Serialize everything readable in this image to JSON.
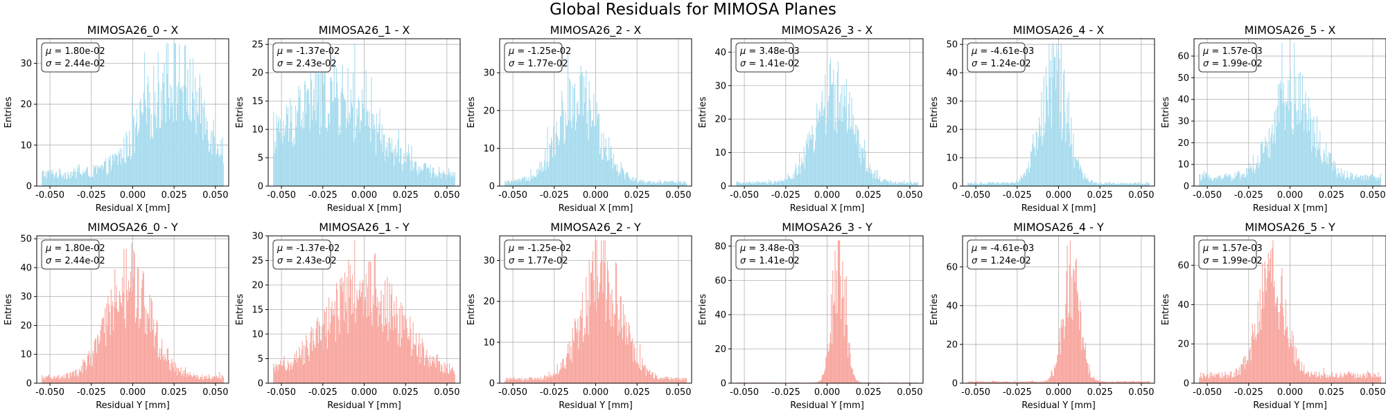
{
  "figure": {
    "title": "Global Residuals for MIMOSA Planes"
  },
  "colors": {
    "x_hist": "#a8dcee",
    "y_hist": "#f8a8a0",
    "grid": "#b0b0b0",
    "axes": "#000000"
  },
  "chart_data": [
    {
      "type": "bar",
      "title": "MIMOSA26_0 - X",
      "xlabel": "Residual X [mm]",
      "ylabel": "Entries",
      "xlim": [
        -0.058,
        0.058
      ],
      "ylim": [
        0,
        36
      ],
      "xticks": [
        -0.05,
        -0.025,
        0.0,
        0.025,
        0.05
      ],
      "xtick_labels": [
        "-0.050",
        "-0.025",
        "0.000",
        "0.025",
        "0.050"
      ],
      "yticks": [
        0,
        10,
        20,
        30
      ],
      "grid": true,
      "bins": [
        -0.055,
        0.055,
        240
      ],
      "shape": {
        "mean": 0.025,
        "sigma": 0.018,
        "peak": 23,
        "floor": 3
      },
      "annotation": {
        "mu": "1.80e-02",
        "sigma": "2.44e-02"
      },
      "color": "#a8dcee"
    },
    {
      "type": "bar",
      "title": "MIMOSA26_1 - X",
      "xlabel": "Residual X [mm]",
      "ylabel": "Entries",
      "xlim": [
        -0.058,
        0.058
      ],
      "ylim": [
        0,
        26
      ],
      "xticks": [
        -0.05,
        -0.025,
        0.0,
        0.025,
        0.05
      ],
      "xtick_labels": [
        "-0.050",
        "-0.025",
        "0.000",
        "0.025",
        "0.050"
      ],
      "yticks": [
        0,
        5,
        10,
        15,
        20,
        25
      ],
      "grid": true,
      "bins": [
        -0.055,
        0.055,
        240
      ],
      "shape": {
        "mean": -0.022,
        "sigma": 0.025,
        "peak": 14,
        "floor": 2
      },
      "annotation": {
        "mu": "-1.37e-02",
        "sigma": "2.43e-02"
      },
      "color": "#a8dcee"
    },
    {
      "type": "bar",
      "title": "MIMOSA26_2 - X",
      "xlabel": "Residual X [mm]",
      "ylabel": "Entries",
      "xlim": [
        -0.058,
        0.058
      ],
      "ylim": [
        0,
        39
      ],
      "xticks": [
        -0.05,
        -0.025,
        0.0,
        0.025,
        0.05
      ],
      "xtick_labels": [
        "-0.050",
        "-0.025",
        "0.000",
        "0.025",
        "0.050"
      ],
      "yticks": [
        0,
        10,
        20,
        30
      ],
      "grid": true,
      "bins": [
        -0.055,
        0.055,
        240
      ],
      "shape": {
        "mean": -0.01,
        "sigma": 0.013,
        "peak": 21,
        "floor": 1
      },
      "annotation": {
        "mu": "-1.25e-02",
        "sigma": "1.77e-02"
      },
      "color": "#a8dcee"
    },
    {
      "type": "bar",
      "title": "MIMOSA26_3 - X",
      "xlabel": "Residual X [mm]",
      "ylabel": "Entries",
      "xlim": [
        -0.058,
        0.058
      ],
      "ylim": [
        0,
        44
      ],
      "xticks": [
        -0.05,
        -0.025,
        0.0,
        0.025,
        0.05
      ],
      "xtick_labels": [
        "-0.050",
        "-0.025",
        "0.000",
        "0.025",
        "0.050"
      ],
      "yticks": [
        0,
        10,
        20,
        30,
        40
      ],
      "grid": true,
      "bins": [
        -0.055,
        0.055,
        240
      ],
      "shape": {
        "mean": 0.004,
        "sigma": 0.011,
        "peak": 27,
        "floor": 1
      },
      "annotation": {
        "mu": "3.48e-03",
        "sigma": "1.41e-02"
      },
      "color": "#a8dcee"
    },
    {
      "type": "bar",
      "title": "MIMOSA26_4 - X",
      "xlabel": "Residual X [mm]",
      "ylabel": "Entries",
      "xlim": [
        -0.058,
        0.058
      ],
      "ylim": [
        0,
        52
      ],
      "xticks": [
        -0.05,
        -0.025,
        0.0,
        0.025,
        0.05
      ],
      "xtick_labels": [
        "-0.050",
        "-0.025",
        "0.000",
        "0.025",
        "0.050"
      ],
      "yticks": [
        0,
        10,
        20,
        30,
        40,
        50
      ],
      "grid": true,
      "bins": [
        -0.055,
        0.055,
        240
      ],
      "shape": {
        "mean": -0.003,
        "sigma": 0.008,
        "peak": 35,
        "floor": 1
      },
      "annotation": {
        "mu": "-4.61e-03",
        "sigma": "1.24e-02"
      },
      "color": "#a8dcee"
    },
    {
      "type": "bar",
      "title": "MIMOSA26_5 - X",
      "xlabel": "Residual X [mm]",
      "ylabel": "Entries",
      "xlim": [
        -0.058,
        0.058
      ],
      "ylim": [
        0,
        68
      ],
      "xticks": [
        -0.05,
        -0.025,
        0.0,
        0.025,
        0.05
      ],
      "xtick_labels": [
        "-0.050",
        "-0.025",
        "0.000",
        "0.025",
        "0.050"
      ],
      "yticks": [
        0,
        10,
        20,
        30,
        40,
        50,
        60
      ],
      "grid": true,
      "bins": [
        -0.055,
        0.055,
        240
      ],
      "shape": {
        "mean": 0.002,
        "sigma": 0.012,
        "peak": 38,
        "floor": 4
      },
      "annotation": {
        "mu": "1.57e-03",
        "sigma": "1.99e-02"
      },
      "color": "#a8dcee"
    },
    {
      "type": "bar",
      "title": "MIMOSA26_0 - Y",
      "xlabel": "Residual Y [mm]",
      "ylabel": "Entries",
      "xlim": [
        -0.058,
        0.058
      ],
      "ylim": [
        0,
        51
      ],
      "xticks": [
        -0.05,
        -0.025,
        0.0,
        0.025,
        0.05
      ],
      "xtick_labels": [
        "-0.050",
        "-0.025",
        "0.000",
        "0.025",
        "0.050"
      ],
      "yticks": [
        0,
        10,
        20,
        30,
        40,
        50
      ],
      "grid": true,
      "bins": [
        -0.055,
        0.055,
        240
      ],
      "shape": {
        "mean": -0.002,
        "sigma": 0.013,
        "peak": 32,
        "floor": 2
      },
      "annotation": {
        "mu": "1.80e-02",
        "sigma": "2.44e-02"
      },
      "color": "#f8a8a0"
    },
    {
      "type": "bar",
      "title": "MIMOSA26_1 - Y",
      "xlabel": "Residual Y [mm]",
      "ylabel": "Entries",
      "xlim": [
        -0.058,
        0.058
      ],
      "ylim": [
        0,
        30
      ],
      "xticks": [
        -0.05,
        -0.025,
        0.0,
        0.025,
        0.05
      ],
      "xtick_labels": [
        "-0.050",
        "-0.025",
        "0.000",
        "0.025",
        "0.050"
      ],
      "yticks": [
        0,
        5,
        10,
        15,
        20,
        25,
        30
      ],
      "grid": true,
      "bins": [
        -0.055,
        0.055,
        240
      ],
      "shape": {
        "mean": 0.0,
        "sigma": 0.022,
        "peak": 17,
        "floor": 2
      },
      "annotation": {
        "mu": "-1.37e-02",
        "sigma": "2.43e-02"
      },
      "color": "#f8a8a0"
    },
    {
      "type": "bar",
      "title": "MIMOSA26_2 - Y",
      "xlabel": "Residual Y [mm]",
      "ylabel": "Entries",
      "xlim": [
        -0.058,
        0.058
      ],
      "ylim": [
        0,
        36
      ],
      "xticks": [
        -0.05,
        -0.025,
        0.0,
        0.025,
        0.05
      ],
      "xtick_labels": [
        "-0.050",
        "-0.025",
        "0.000",
        "0.025",
        "0.050"
      ],
      "yticks": [
        0,
        10,
        20,
        30
      ],
      "grid": true,
      "bins": [
        -0.055,
        0.055,
        240
      ],
      "shape": {
        "mean": 0.004,
        "sigma": 0.012,
        "peak": 26,
        "floor": 1
      },
      "annotation": {
        "mu": "-1.25e-02",
        "sigma": "1.77e-02"
      },
      "color": "#f8a8a0"
    },
    {
      "type": "bar",
      "title": "MIMOSA26_3 - Y",
      "xlabel": "Residual Y [mm]",
      "ylabel": "Entries",
      "xlim": [
        -0.058,
        0.058
      ],
      "ylim": [
        0,
        86
      ],
      "xticks": [
        -0.05,
        -0.025,
        0.0,
        0.025,
        0.05
      ],
      "xtick_labels": [
        "-0.050",
        "-0.025",
        "0.000",
        "0.025",
        "0.050"
      ],
      "yticks": [
        0,
        20,
        40,
        60,
        80
      ],
      "grid": true,
      "bins": [
        -0.055,
        0.055,
        240
      ],
      "shape": {
        "mean": 0.007,
        "sigma": 0.004,
        "peak": 68,
        "floor": 0.3
      },
      "annotation": {
        "mu": "3.48e-03",
        "sigma": "1.41e-02"
      },
      "color": "#f8a8a0"
    },
    {
      "type": "bar",
      "title": "MIMOSA26_4 - Y",
      "xlabel": "Residual Y [mm]",
      "ylabel": "Entries",
      "xlim": [
        -0.058,
        0.058
      ],
      "ylim": [
        0,
        76
      ],
      "xticks": [
        -0.05,
        -0.025,
        0.0,
        0.025,
        0.05
      ],
      "xtick_labels": [
        "-0.050",
        "-0.025",
        "0.000",
        "0.025",
        "0.050"
      ],
      "yticks": [
        0,
        20,
        40,
        60
      ],
      "grid": true,
      "bins": [
        -0.055,
        0.055,
        240
      ],
      "shape": {
        "mean": 0.008,
        "sigma": 0.005,
        "peak": 58,
        "floor": 0.8
      },
      "annotation": {
        "mu": "-4.61e-03",
        "sigma": "1.24e-02"
      },
      "color": "#f8a8a0"
    },
    {
      "type": "bar",
      "title": "MIMOSA26_5 - Y",
      "xlabel": "Residual Y [mm]",
      "ylabel": "Entries",
      "xlim": [
        -0.058,
        0.058
      ],
      "ylim": [
        0,
        75
      ],
      "xticks": [
        -0.05,
        -0.025,
        0.0,
        0.025,
        0.05
      ],
      "xtick_labels": [
        "-0.050",
        "-0.025",
        "0.000",
        "0.025",
        "0.050"
      ],
      "yticks": [
        0,
        20,
        40,
        60
      ],
      "grid": true,
      "bins": [
        -0.055,
        0.055,
        240
      ],
      "shape": {
        "mean": -0.011,
        "sigma": 0.008,
        "peak": 50,
        "floor": 4
      },
      "annotation": {
        "mu": "1.57e-03",
        "sigma": "1.99e-02"
      },
      "color": "#f8a8a0"
    }
  ]
}
